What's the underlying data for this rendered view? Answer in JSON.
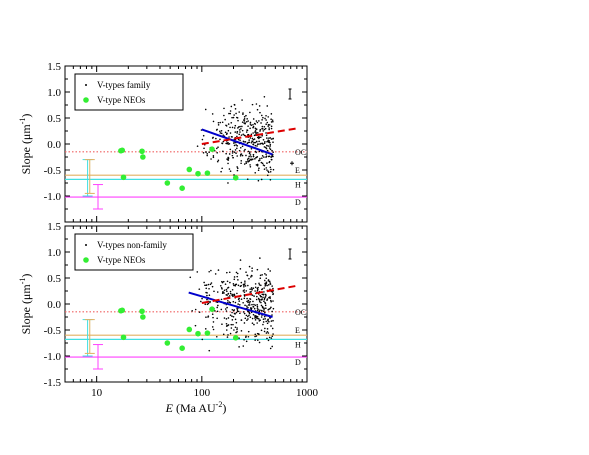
{
  "chart_data": [
    {
      "type": "scatter",
      "panel": "top",
      "ylabel_main": "Slope (",
      "ylabel_unit": "μm",
      "ylabel_exp": "-1",
      "ylabel_close": ")",
      "xlim": [
        5,
        1000
      ],
      "xscale": "log",
      "ylim": [
        -1.5,
        1.5
      ],
      "x_ticks": [
        "10",
        "100",
        "1000"
      ],
      "y_ticks": [
        "-1.5",
        "-1.0",
        "-0.5",
        "0.0",
        "0.5",
        "1.0",
        "1.5"
      ],
      "legend": [
        "V-types family",
        "V-type NEOs"
      ],
      "legend_placement": "top-left",
      "panel_marker": "I",
      "reference_lines": [
        {
          "label": "OC",
          "y": -0.15,
          "color": "#f06060",
          "style": "dotted"
        },
        {
          "label": "E",
          "y": -0.6,
          "color": "#e0b060",
          "style": "solid"
        },
        {
          "label": "H",
          "y": -0.68,
          "color": "#40e0e0",
          "style": "solid"
        },
        {
          "label": "D",
          "y": -1.02,
          "color": "#ff40ff",
          "style": "solid"
        }
      ],
      "error_bars": [
        {
          "x": 8.2,
          "ylow": -1.0,
          "yhigh": -0.3,
          "color": "#40e0e0"
        },
        {
          "x": 8.6,
          "ylow": -0.95,
          "yhigh": -0.3,
          "color": "#e0b060"
        },
        {
          "x": 10.3,
          "ylow": -1.25,
          "yhigh": -0.78,
          "color": "#ff40ff"
        }
      ],
      "fit_lines": [
        {
          "x": [
            100,
            470
          ],
          "y": [
            0.28,
            -0.2
          ],
          "color": "#0000cc",
          "style": "solid"
        },
        {
          "x": [
            100,
            800
          ],
          "y": [
            0.0,
            0.3
          ],
          "color": "#dd0000",
          "style": "dashed"
        }
      ],
      "neo_points": [
        {
          "x": 17,
          "y": -0.13
        },
        {
          "x": 17.5,
          "y": -0.12
        },
        {
          "x": 18,
          "y": -0.64
        },
        {
          "x": 27,
          "y": -0.14
        },
        {
          "x": 27.5,
          "y": -0.25
        },
        {
          "x": 47,
          "y": -0.75
        },
        {
          "x": 65,
          "y": -0.85
        },
        {
          "x": 76,
          "y": -0.49
        },
        {
          "x": 92,
          "y": -0.57
        },
        {
          "x": 113,
          "y": -0.56
        },
        {
          "x": 125,
          "y": -0.1
        },
        {
          "x": 210,
          "y": -0.65
        }
      ],
      "family_cloud": {
        "x_range": [
          90,
          480
        ],
        "y_center": 0.05,
        "y_spread": 1.0,
        "count": 400
      }
    },
    {
      "type": "scatter",
      "panel": "bottom",
      "ylabel_main": "Slope (",
      "ylabel_unit": "μm",
      "ylabel_exp": "-1",
      "ylabel_close": ")",
      "xlabel_var": "E",
      "xlabel_unit": " (Ma AU",
      "xlabel_exp": "-2",
      "xlabel_close": ")",
      "xlim": [
        5,
        1000
      ],
      "xscale": "log",
      "ylim": [
        -1.5,
        1.5
      ],
      "x_ticks": [
        "10",
        "100",
        "1000"
      ],
      "y_ticks": [
        "-1.5",
        "-1.0",
        "-0.5",
        "0.0",
        "0.5",
        "1.0",
        "1.5"
      ],
      "legend": [
        "V-types non-family",
        "V-type NEOs"
      ],
      "legend_placement": "top-left",
      "panel_marker": "I",
      "reference_lines": [
        {
          "label": "OC",
          "y": -0.15,
          "color": "#f06060",
          "style": "dotted"
        },
        {
          "label": "E",
          "y": -0.6,
          "color": "#e0b060",
          "style": "solid"
        },
        {
          "label": "H",
          "y": -0.68,
          "color": "#40e0e0",
          "style": "solid"
        },
        {
          "label": "D",
          "y": -1.02,
          "color": "#ff40ff",
          "style": "solid"
        }
      ],
      "error_bars": [
        {
          "x": 8.2,
          "ylow": -1.0,
          "yhigh": -0.3,
          "color": "#40e0e0"
        },
        {
          "x": 8.6,
          "ylow": -0.95,
          "yhigh": -0.3,
          "color": "#e0b060"
        },
        {
          "x": 10.3,
          "ylow": -1.25,
          "yhigh": -0.78,
          "color": "#ff40ff"
        }
      ],
      "fit_lines": [
        {
          "x": [
            75,
            470
          ],
          "y": [
            0.22,
            -0.25
          ],
          "color": "#0000cc",
          "style": "solid"
        },
        {
          "x": [
            100,
            800
          ],
          "y": [
            0.02,
            0.35
          ],
          "color": "#dd0000",
          "style": "dashed"
        }
      ],
      "neo_points": [
        {
          "x": 17,
          "y": -0.13
        },
        {
          "x": 17.5,
          "y": -0.12
        },
        {
          "x": 18,
          "y": -0.64
        },
        {
          "x": 27,
          "y": -0.14
        },
        {
          "x": 27.5,
          "y": -0.25
        },
        {
          "x": 47,
          "y": -0.75
        },
        {
          "x": 65,
          "y": -0.85
        },
        {
          "x": 76,
          "y": -0.49
        },
        {
          "x": 92,
          "y": -0.57
        },
        {
          "x": 113,
          "y": -0.56
        },
        {
          "x": 125,
          "y": -0.1
        },
        {
          "x": 210,
          "y": -0.65
        }
      ],
      "family_cloud": {
        "x_range": [
          75,
          480
        ],
        "y_center": 0.0,
        "y_spread": 1.05,
        "count": 450
      }
    }
  ],
  "colors": {
    "axis": "#000000",
    "family_points": "#000000",
    "neo_points": "#33ee33"
  }
}
